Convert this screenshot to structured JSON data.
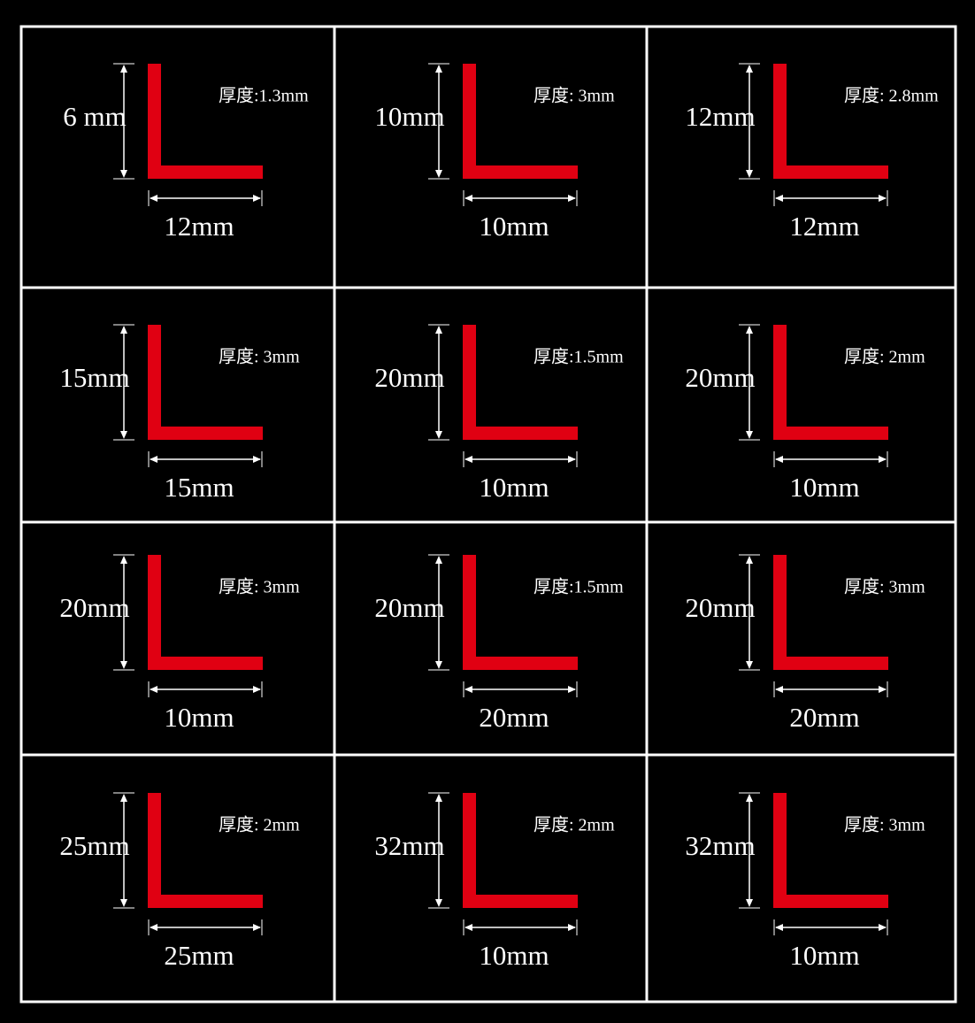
{
  "cells": [
    {
      "height": "6 mm",
      "width": "12mm",
      "thickness": "厚度:1.3mm"
    },
    {
      "height": "10mm",
      "width": "10mm",
      "thickness": "厚度: 3mm"
    },
    {
      "height": "12mm",
      "width": "12mm",
      "thickness": "厚度: 2.8mm"
    },
    {
      "height": "15mm",
      "width": "15mm",
      "thickness": "厚度: 3mm"
    },
    {
      "height": "20mm",
      "width": "10mm",
      "thickness": "厚度:1.5mm"
    },
    {
      "height": "20mm",
      "width": "10mm",
      "thickness": "厚度: 2mm"
    },
    {
      "height": "20mm",
      "width": "10mm",
      "thickness": "厚度: 3mm"
    },
    {
      "height": "20mm",
      "width": "20mm",
      "thickness": "厚度:1.5mm"
    },
    {
      "height": "20mm",
      "width": "20mm",
      "thickness": "厚度: 3mm"
    },
    {
      "height": "25mm",
      "width": "25mm",
      "thickness": "厚度: 2mm"
    },
    {
      "height": "32mm",
      "width": "10mm",
      "thickness": "厚度: 2mm"
    },
    {
      "height": "32mm",
      "width": "10mm",
      "thickness": "厚度: 3mm"
    }
  ]
}
